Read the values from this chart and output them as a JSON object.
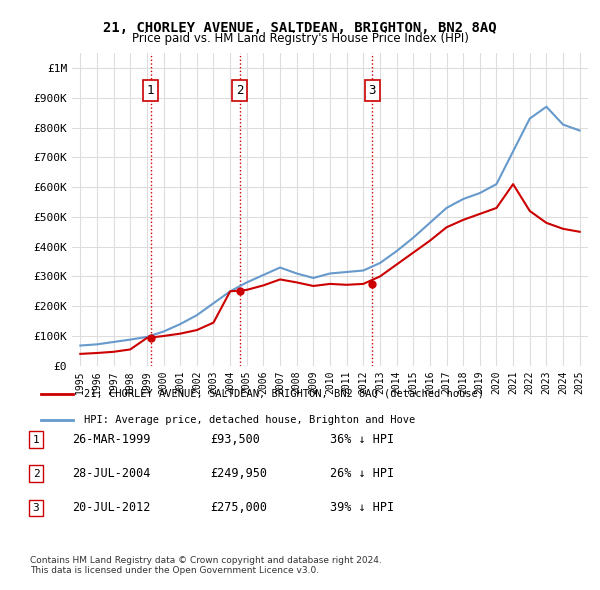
{
  "title": "21, CHORLEY AVENUE, SALTDEAN, BRIGHTON, BN2 8AQ",
  "subtitle": "Price paid vs. HM Land Registry's House Price Index (HPI)",
  "legend_label_red": "21, CHORLEY AVENUE, SALTDEAN, BRIGHTON, BN2 8AQ (detached house)",
  "legend_label_blue": "HPI: Average price, detached house, Brighton and Hove",
  "sale_points": [
    {
      "label": "1",
      "date_num": 1999.23,
      "price": 93500
    },
    {
      "label": "2",
      "date_num": 2004.57,
      "price": 249950
    },
    {
      "label": "3",
      "date_num": 2012.55,
      "price": 275000
    }
  ],
  "table_rows": [
    [
      "1",
      "26-MAR-1999",
      "£93,500",
      "36% ↓ HPI"
    ],
    [
      "2",
      "28-JUL-2004",
      "£249,950",
      "26% ↓ HPI"
    ],
    [
      "3",
      "20-JUL-2012",
      "£275,000",
      "39% ↓ HPI"
    ]
  ],
  "footer": "Contains HM Land Registry data © Crown copyright and database right 2024.\nThis data is licensed under the Open Government Licence v3.0.",
  "red_color": "#cc0000",
  "blue_color": "#6699cc",
  "ylim": [
    0,
    1050000
  ],
  "xlim": [
    1994.5,
    2025.5
  ],
  "background_color": "#ffffff",
  "grid_color": "#dddddd",
  "vline_color": "#cc0000",
  "vline_style": ":",
  "hpi_years": [
    1995,
    1996,
    1997,
    1998,
    1999,
    2000,
    2001,
    2002,
    2003,
    2004,
    2005,
    2006,
    2007,
    2008,
    2009,
    2010,
    2011,
    2012,
    2013,
    2014,
    2015,
    2016,
    2017,
    2018,
    2019,
    2020,
    2021,
    2022,
    2023,
    2024,
    2025
  ],
  "hpi_values": [
    68000,
    72000,
    80000,
    88000,
    97000,
    115000,
    140000,
    170000,
    210000,
    250000,
    280000,
    305000,
    330000,
    310000,
    295000,
    310000,
    315000,
    320000,
    345000,
    385000,
    430000,
    480000,
    530000,
    560000,
    580000,
    610000,
    720000,
    830000,
    870000,
    810000,
    790000
  ],
  "price_years": [
    1995,
    1996,
    1997,
    1998,
    1999,
    2000,
    2001,
    2002,
    2003,
    2004,
    2005,
    2006,
    2007,
    2008,
    2009,
    2010,
    2011,
    2012,
    2013,
    2014,
    2015,
    2016,
    2017,
    2018,
    2019,
    2020,
    2021,
    2022,
    2023,
    2024,
    2025
  ],
  "price_values": [
    40000,
    43000,
    47000,
    55000,
    93500,
    100000,
    108000,
    120000,
    145000,
    249950,
    255000,
    270000,
    290000,
    280000,
    268000,
    275000,
    272000,
    275000,
    300000,
    340000,
    380000,
    420000,
    465000,
    490000,
    510000,
    530000,
    610000,
    520000,
    480000,
    460000,
    450000
  ]
}
